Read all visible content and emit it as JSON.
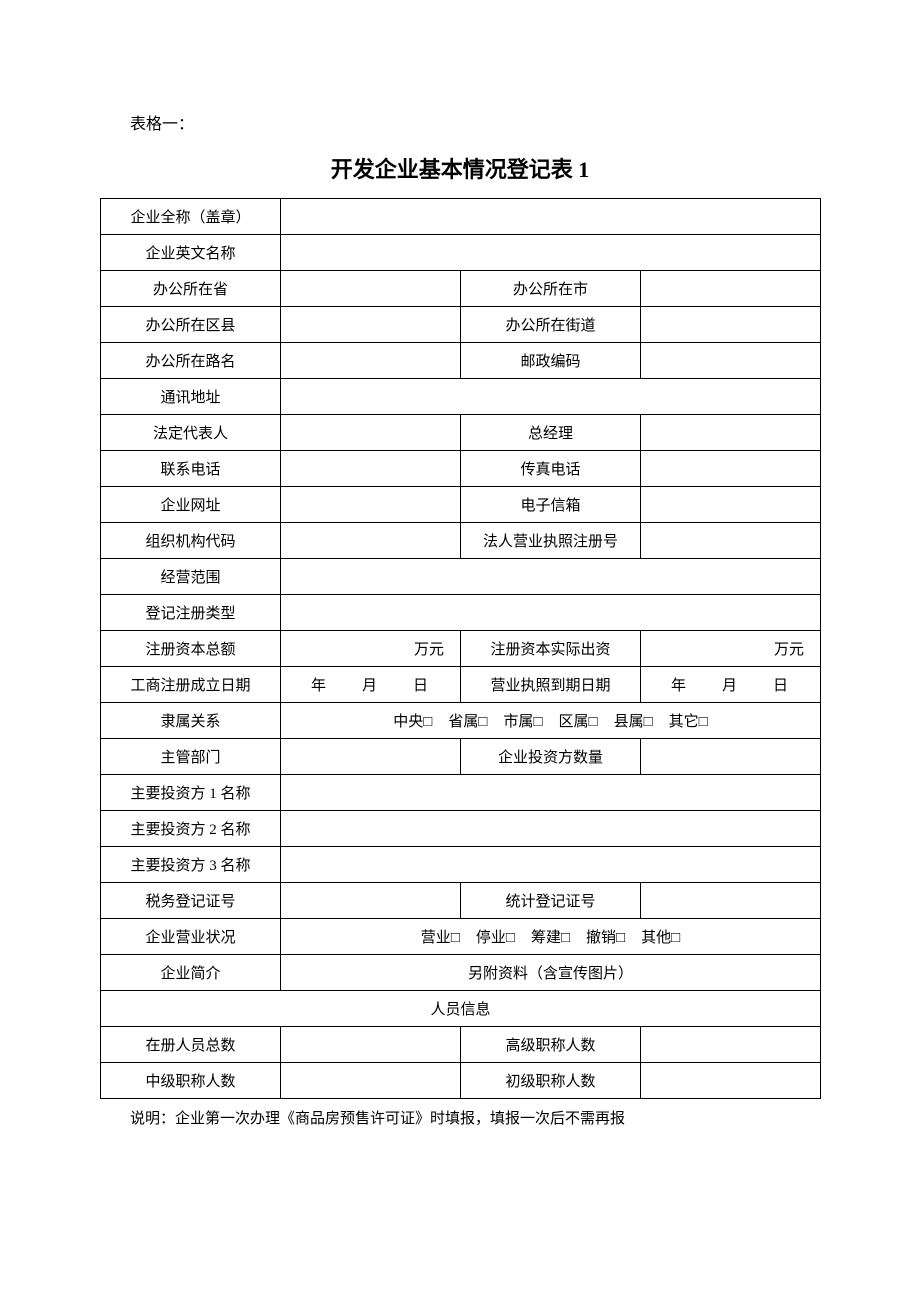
{
  "tableLabel": "表格一：",
  "title": "开发企业基本情况登记表 1",
  "labels": {
    "companyFullName": "企业全称（盖章）",
    "companyEnglishName": "企业英文名称",
    "officeProvince": "办公所在省",
    "officeCity": "办公所在市",
    "officeDistrict": "办公所在区县",
    "officeStreet": "办公所在街道",
    "officeRoad": "办公所在路名",
    "postalCode": "邮政编码",
    "mailingAddress": "通讯地址",
    "legalRep": "法定代表人",
    "generalManager": "总经理",
    "phone": "联系电话",
    "fax": "传真电话",
    "website": "企业网址",
    "email": "电子信箱",
    "orgCode": "组织机构代码",
    "bizLicenseNo": "法人营业执照注册号",
    "businessScope": "经营范围",
    "registrationType": "登记注册类型",
    "registeredCapital": "注册资本总额",
    "actualCapital": "注册资本实际出资",
    "incorpDate": "工商注册成立日期",
    "licenseExpiry": "营业执照到期日期",
    "affiliation": "隶属关系",
    "supervisor": "主管部门",
    "investorCount": "企业投资方数量",
    "investor1": "主要投资方 1 名称",
    "investor2": "主要投资方 2 名称",
    "investor3": "主要投资方 3 名称",
    "taxRegNo": "税务登记证号",
    "statsRegNo": "统计登记证号",
    "businessStatus": "企业营业状况",
    "companyProfile": "企业简介",
    "personnelInfo": "人员信息",
    "totalStaff": "在册人员总数",
    "seniorTitle": "高级职称人数",
    "midTitle": "中级职称人数",
    "juniorTitle": "初级职称人数"
  },
  "units": {
    "wanyuan": "万元",
    "datePlaceholder": "年　　月　　日"
  },
  "affiliationOptions": [
    "中央",
    "省属",
    "市属",
    "区属",
    "县属",
    "其它"
  ],
  "statusOptions": [
    "营业",
    "停业",
    "筹建",
    "撤销",
    "其他"
  ],
  "profileNote": "另附资料（含宣传图片）",
  "footnote": "说明：企业第一次办理《商品房预售许可证》时填报，填报一次后不需再报",
  "checkboxSymbol": "□"
}
